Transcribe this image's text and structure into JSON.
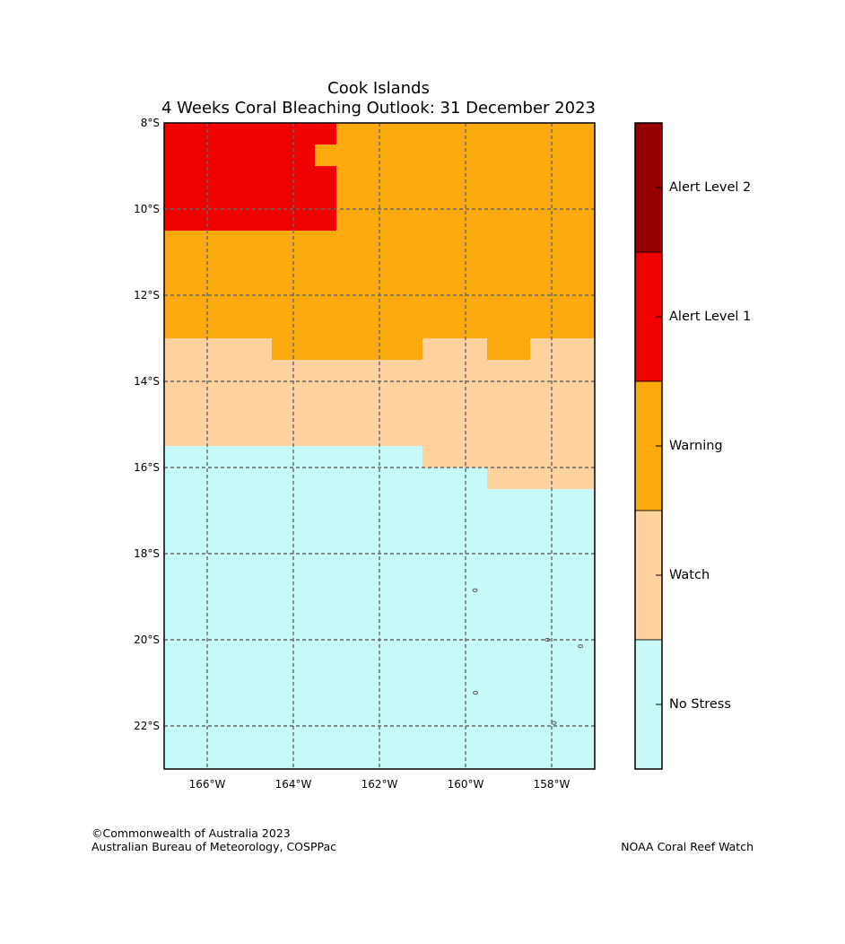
{
  "header": {
    "title_line1": "Cook Islands",
    "title_line2": "4 Weeks Coral Bleaching Outlook: 31 December 2023"
  },
  "map": {
    "lon_range": [
      -167,
      -157
    ],
    "lat_range": [
      -23,
      -8
    ],
    "cell_size_deg": 0.5,
    "lon_ticks": [
      {
        "value": -166,
        "label": "166°W"
      },
      {
        "value": -164,
        "label": "164°W"
      },
      {
        "value": -162,
        "label": "162°W"
      },
      {
        "value": -160,
        "label": "160°W"
      },
      {
        "value": -158,
        "label": "158°W"
      }
    ],
    "lat_ticks": [
      {
        "value": -8,
        "label": "8°S"
      },
      {
        "value": -10,
        "label": "10°S"
      },
      {
        "value": -12,
        "label": "12°S"
      },
      {
        "value": -14,
        "label": "14°S"
      },
      {
        "value": -16,
        "label": "16°S"
      },
      {
        "value": -18,
        "label": "18°S"
      },
      {
        "value": -20,
        "label": "20°S"
      },
      {
        "value": -22,
        "label": "22°S"
      }
    ],
    "gridlines": "dashed",
    "regions": [
      {
        "level": "no_stress",
        "cells": "default"
      },
      {
        "level": "watch",
        "polygon": [
          [
            -167,
            -15.5
          ],
          [
            -161,
            -15.5
          ],
          [
            -161,
            -16
          ],
          [
            -159.5,
            -16
          ],
          [
            -159.5,
            -16.5
          ],
          [
            -157,
            -16.5
          ],
          [
            -157,
            -13
          ],
          [
            -167,
            -13
          ]
        ]
      },
      {
        "level": "warning",
        "polygon": [
          [
            -167,
            -13
          ],
          [
            -164.5,
            -13
          ],
          [
            -164.5,
            -13.5
          ],
          [
            -161,
            -13.5
          ],
          [
            -161,
            -13
          ],
          [
            -159.5,
            -13
          ],
          [
            -159.5,
            -13.5
          ],
          [
            -158.5,
            -13.5
          ],
          [
            -158.5,
            -13
          ],
          [
            -157,
            -13
          ],
          [
            -157,
            -8
          ],
          [
            -167,
            -8
          ]
        ]
      },
      {
        "level": "alert_1",
        "polygon": [
          [
            -167,
            -10.5
          ],
          [
            -163,
            -10.5
          ],
          [
            -163,
            -9
          ],
          [
            -163.5,
            -9
          ],
          [
            -163.5,
            -8.5
          ],
          [
            -163,
            -8.5
          ],
          [
            -163,
            -8
          ],
          [
            -167,
            -8
          ]
        ]
      }
    ],
    "islands": [
      {
        "lon": -159.78,
        "lat": -18.85
      },
      {
        "lon": -159.77,
        "lat": -21.23
      },
      {
        "lon": -158.1,
        "lat": -20.0
      },
      {
        "lon": -157.33,
        "lat": -20.15
      },
      {
        "lon": -157.95,
        "lat": -21.93
      }
    ]
  },
  "legend": {
    "levels": [
      {
        "key": "alert_2",
        "label": "Alert Level 2",
        "color": "#960000"
      },
      {
        "key": "alert_1",
        "label": "Alert Level 1",
        "color": "#f00000"
      },
      {
        "key": "warning",
        "label": "Warning",
        "color": "#faaa0f"
      },
      {
        "key": "watch",
        "label": "Watch",
        "color": "#ffd2a0"
      },
      {
        "key": "no_stress",
        "label": "No Stress",
        "color": "#c8fafa"
      }
    ]
  },
  "footer": {
    "copyright": "©Commonwealth of Australia 2023",
    "agency": "Australian Bureau of Meteorology, COSPPac",
    "source": "NOAA Coral Reef Watch"
  }
}
